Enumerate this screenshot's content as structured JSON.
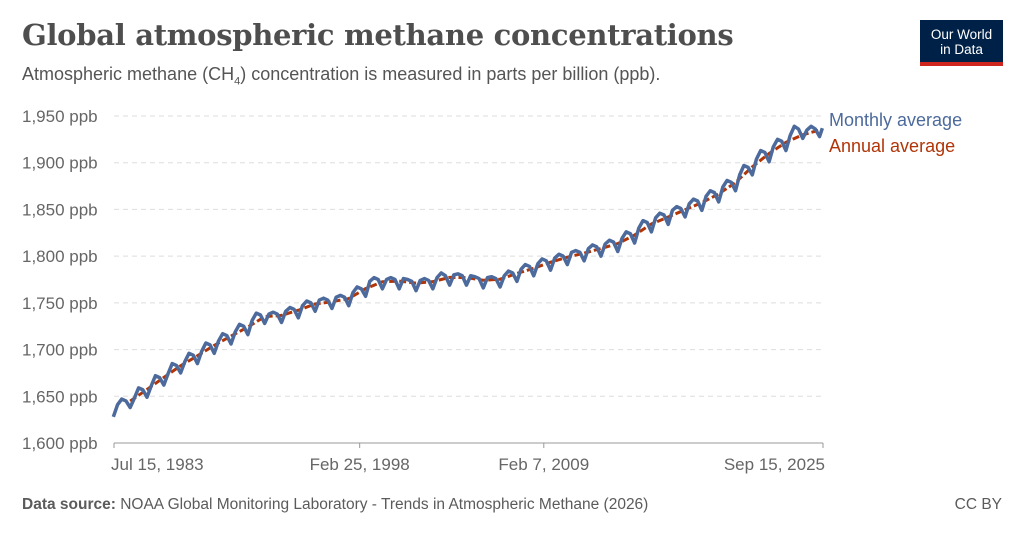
{
  "header": {
    "title": "Global atmospheric methane concentrations",
    "subtitle_pre": "Atmospheric methane (CH",
    "subtitle_sub": "4",
    "subtitle_post": ") concentration is measured in parts per billion (ppb)."
  },
  "logo": {
    "line1": "Our World",
    "line2": "in Data",
    "bg": "#002147",
    "accent": "#ce261e"
  },
  "footer": {
    "source_label": "Data source:",
    "source_text": " NOAA Global Monitoring Laboratory - Trends in Atmospheric Methane (2026)",
    "license": "CC BY"
  },
  "chart_data": {
    "type": "line",
    "title": "Global atmospheric methane concentrations",
    "ylim": [
      1600,
      1950
    ],
    "xlim": [
      "1983-07",
      "2025-09"
    ],
    "y_ticks": [
      {
        "v": 1600,
        "label": "1,600 ppb"
      },
      {
        "v": 1650,
        "label": "1,650 ppb"
      },
      {
        "v": 1700,
        "label": "1,700 ppb"
      },
      {
        "v": 1750,
        "label": "1,750 ppb"
      },
      {
        "v": 1800,
        "label": "1,800 ppb"
      },
      {
        "v": 1850,
        "label": "1,850 ppb"
      },
      {
        "v": 1900,
        "label": "1,900 ppb"
      },
      {
        "v": 1950,
        "label": "1,950 ppb"
      }
    ],
    "x_ticks": [
      {
        "v": "1983-07-15",
        "label": "Jul 15, 1983"
      },
      {
        "v": "1998-02-25",
        "label": "Feb 25, 1998"
      },
      {
        "v": "2009-02-07",
        "label": "Feb 7, 2009"
      },
      {
        "v": "2025-09-15",
        "label": "Sep 15, 2025"
      }
    ],
    "grid": "horizontal dashed",
    "legend": "right, inline labels",
    "series": [
      {
        "name": "Monthly average",
        "color": "#4c6a9c",
        "points": [
          [
            "1983-07",
            1628
          ],
          [
            "1983-10",
            1641
          ],
          [
            "1984-01",
            1647
          ],
          [
            "1984-04",
            1645
          ],
          [
            "1984-07",
            1638
          ],
          [
            "1984-10",
            1648
          ],
          [
            "1985-01",
            1659
          ],
          [
            "1985-04",
            1657
          ],
          [
            "1985-07",
            1649
          ],
          [
            "1985-10",
            1661
          ],
          [
            "1986-01",
            1672
          ],
          [
            "1986-04",
            1670
          ],
          [
            "1986-07",
            1662
          ],
          [
            "1986-10",
            1674
          ],
          [
            "1987-01",
            1685
          ],
          [
            "1987-04",
            1683
          ],
          [
            "1987-07",
            1675
          ],
          [
            "1987-10",
            1687
          ],
          [
            "1988-01",
            1696
          ],
          [
            "1988-04",
            1694
          ],
          [
            "1988-07",
            1685
          ],
          [
            "1988-10",
            1698
          ],
          [
            "1989-01",
            1707
          ],
          [
            "1989-04",
            1705
          ],
          [
            "1989-07",
            1696
          ],
          [
            "1989-10",
            1709
          ],
          [
            "1990-01",
            1717
          ],
          [
            "1990-04",
            1715
          ],
          [
            "1990-07",
            1706
          ],
          [
            "1990-10",
            1719
          ],
          [
            "1991-01",
            1727
          ],
          [
            "1991-04",
            1725
          ],
          [
            "1991-07",
            1716
          ],
          [
            "1991-10",
            1731
          ],
          [
            "1992-01",
            1739
          ],
          [
            "1992-04",
            1737
          ],
          [
            "1992-07",
            1728
          ],
          [
            "1992-10",
            1738
          ],
          [
            "1993-01",
            1740
          ],
          [
            "1993-04",
            1738
          ],
          [
            "1993-07",
            1729
          ],
          [
            "1993-10",
            1741
          ],
          [
            "1994-01",
            1745
          ],
          [
            "1994-04",
            1743
          ],
          [
            "1994-07",
            1734
          ],
          [
            "1994-10",
            1747
          ],
          [
            "1995-01",
            1752
          ],
          [
            "1995-04",
            1750
          ],
          [
            "1995-07",
            1741
          ],
          [
            "1995-10",
            1753
          ],
          [
            "1996-01",
            1755
          ],
          [
            "1996-04",
            1753
          ],
          [
            "1996-07",
            1744
          ],
          [
            "1996-10",
            1756
          ],
          [
            "1997-01",
            1758
          ],
          [
            "1997-04",
            1756
          ],
          [
            "1997-07",
            1747
          ],
          [
            "1997-10",
            1761
          ],
          [
            "1998-01",
            1767
          ],
          [
            "1998-04",
            1765
          ],
          [
            "1998-07",
            1757
          ],
          [
            "1998-10",
            1773
          ],
          [
            "1999-01",
            1777
          ],
          [
            "1999-04",
            1775
          ],
          [
            "1999-07",
            1765
          ],
          [
            "1999-10",
            1775
          ],
          [
            "2000-01",
            1777
          ],
          [
            "2000-04",
            1775
          ],
          [
            "2000-07",
            1765
          ],
          [
            "2000-10",
            1776
          ],
          [
            "2001-01",
            1775
          ],
          [
            "2001-04",
            1773
          ],
          [
            "2001-07",
            1763
          ],
          [
            "2001-10",
            1774
          ],
          [
            "2002-01",
            1776
          ],
          [
            "2002-04",
            1774
          ],
          [
            "2002-07",
            1765
          ],
          [
            "2002-10",
            1777
          ],
          [
            "2003-01",
            1782
          ],
          [
            "2003-04",
            1779
          ],
          [
            "2003-07",
            1769
          ],
          [
            "2003-10",
            1780
          ],
          [
            "2004-01",
            1781
          ],
          [
            "2004-04",
            1779
          ],
          [
            "2004-07",
            1769
          ],
          [
            "2004-10",
            1779
          ],
          [
            "2005-01",
            1778
          ],
          [
            "2005-04",
            1776
          ],
          [
            "2005-07",
            1766
          ],
          [
            "2005-10",
            1777
          ],
          [
            "2006-01",
            1778
          ],
          [
            "2006-04",
            1776
          ],
          [
            "2006-07",
            1767
          ],
          [
            "2006-10",
            1779
          ],
          [
            "2007-01",
            1784
          ],
          [
            "2007-04",
            1782
          ],
          [
            "2007-07",
            1773
          ],
          [
            "2007-10",
            1786
          ],
          [
            "2008-01",
            1791
          ],
          [
            "2008-04",
            1789
          ],
          [
            "2008-07",
            1779
          ],
          [
            "2008-10",
            1792
          ],
          [
            "2009-01",
            1797
          ],
          [
            "2009-04",
            1795
          ],
          [
            "2009-07",
            1785
          ],
          [
            "2009-10",
            1798
          ],
          [
            "2010-01",
            1802
          ],
          [
            "2010-04",
            1800
          ],
          [
            "2010-07",
            1791
          ],
          [
            "2010-10",
            1804
          ],
          [
            "2011-01",
            1806
          ],
          [
            "2011-04",
            1804
          ],
          [
            "2011-07",
            1795
          ],
          [
            "2011-10",
            1808
          ],
          [
            "2012-01",
            1812
          ],
          [
            "2012-04",
            1810
          ],
          [
            "2012-07",
            1800
          ],
          [
            "2012-10",
            1813
          ],
          [
            "2013-01",
            1817
          ],
          [
            "2013-04",
            1815
          ],
          [
            "2013-07",
            1805
          ],
          [
            "2013-10",
            1819
          ],
          [
            "2014-01",
            1826
          ],
          [
            "2014-04",
            1824
          ],
          [
            "2014-07",
            1814
          ],
          [
            "2014-10",
            1830
          ],
          [
            "2015-01",
            1838
          ],
          [
            "2015-04",
            1836
          ],
          [
            "2015-07",
            1826
          ],
          [
            "2015-10",
            1841
          ],
          [
            "2016-01",
            1846
          ],
          [
            "2016-04",
            1844
          ],
          [
            "2016-07",
            1834
          ],
          [
            "2016-10",
            1849
          ],
          [
            "2017-01",
            1853
          ],
          [
            "2017-04",
            1851
          ],
          [
            "2017-07",
            1842
          ],
          [
            "2017-10",
            1856
          ],
          [
            "2018-01",
            1861
          ],
          [
            "2018-04",
            1859
          ],
          [
            "2018-07",
            1849
          ],
          [
            "2018-10",
            1864
          ],
          [
            "2019-01",
            1870
          ],
          [
            "2019-04",
            1868
          ],
          [
            "2019-07",
            1858
          ],
          [
            "2019-10",
            1874
          ],
          [
            "2020-01",
            1881
          ],
          [
            "2020-04",
            1879
          ],
          [
            "2020-07",
            1870
          ],
          [
            "2020-10",
            1887
          ],
          [
            "2021-01",
            1897
          ],
          [
            "2021-04",
            1895
          ],
          [
            "2021-07",
            1887
          ],
          [
            "2021-10",
            1904
          ],
          [
            "2022-01",
            1913
          ],
          [
            "2022-04",
            1911
          ],
          [
            "2022-07",
            1901
          ],
          [
            "2022-10",
            1917
          ],
          [
            "2023-01",
            1925
          ],
          [
            "2023-04",
            1923
          ],
          [
            "2023-07",
            1913
          ],
          [
            "2023-10",
            1929
          ],
          [
            "2024-01",
            1939
          ],
          [
            "2024-04",
            1936
          ],
          [
            "2024-07",
            1926
          ],
          [
            "2024-10",
            1935
          ],
          [
            "2025-01",
            1939
          ],
          [
            "2025-04",
            1936
          ],
          [
            "2025-07",
            1928
          ],
          [
            "2025-09",
            1937
          ]
        ]
      },
      {
        "name": "Annual average",
        "color": "#b13507",
        "points": [
          [
            "1984-07",
            1644.8
          ],
          [
            "1985-07",
            1657.3
          ],
          [
            "1986-07",
            1670.1
          ],
          [
            "1987-07",
            1682.7
          ],
          [
            "1988-07",
            1693.3
          ],
          [
            "1989-07",
            1704.5
          ],
          [
            "1990-07",
            1714.5
          ],
          [
            "1991-07",
            1724.1
          ],
          [
            "1992-07",
            1735.2
          ],
          [
            "1993-07",
            1736.6
          ],
          [
            "1994-07",
            1742.1
          ],
          [
            "1995-07",
            1748.8
          ],
          [
            "1996-07",
            1751.2
          ],
          [
            "1997-07",
            1754.6
          ],
          [
            "1998-07",
            1765.2
          ],
          [
            "1999-07",
            1772.6
          ],
          [
            "2000-07",
            1773.3
          ],
          [
            "2001-07",
            1771.1
          ],
          [
            "2002-07",
            1772.7
          ],
          [
            "2003-07",
            1777.3
          ],
          [
            "2004-07",
            1777.0
          ],
          [
            "2005-07",
            1774.2
          ],
          [
            "2006-07",
            1775.3
          ],
          [
            "2007-07",
            1781.5
          ],
          [
            "2008-07",
            1787.0
          ],
          [
            "2009-07",
            1793.5
          ],
          [
            "2010-07",
            1798.9
          ],
          [
            "2011-07",
            1803.2
          ],
          [
            "2012-07",
            1808.2
          ],
          [
            "2013-07",
            1813.4
          ],
          [
            "2014-07",
            1822.6
          ],
          [
            "2015-07",
            1834.4
          ],
          [
            "2016-07",
            1841.9
          ],
          [
            "2017-07",
            1849.7
          ],
          [
            "2018-07",
            1857.3
          ],
          [
            "2019-07",
            1866.6
          ],
          [
            "2020-07",
            1878.8
          ],
          [
            "2021-07",
            1895.6
          ],
          [
            "2022-07",
            1909.9
          ],
          [
            "2023-07",
            1921.8
          ],
          [
            "2024-07",
            1929.9
          ],
          [
            "2025-07",
            1935.0
          ]
        ]
      }
    ]
  }
}
